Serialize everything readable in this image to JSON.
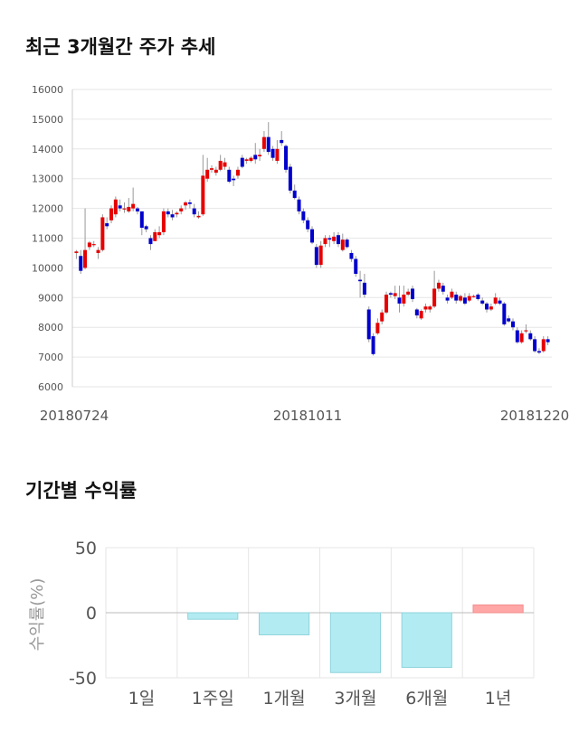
{
  "titles": {
    "stock": "최근 3개월간 주가 추세",
    "returns": "기간별 수익률"
  },
  "colors": {
    "up": "#e60000",
    "down": "#0000cc",
    "wick": "#999999",
    "grid": "#e6e6e6",
    "bar_negative": "#b3ebf2",
    "bar_negative_stroke": "#8fd3dc",
    "bar_positive": "#ffa6a6",
    "bar_positive_stroke": "#f28d8d"
  },
  "chart_data": [
    {
      "type": "candlestick",
      "title": "최근 3개월간 주가 추세",
      "ylim": [
        6000,
        16000
      ],
      "yticks": [
        "16000",
        "15000",
        "14000",
        "13000",
        "12000",
        "11000",
        "10000",
        "9000",
        "8000",
        "7000",
        "6000"
      ],
      "x_labels": [
        "20180724",
        "20181011",
        "20181220"
      ],
      "grid": true,
      "candles": [
        [
          10500,
          10550,
          10300,
          10600
        ],
        [
          10400,
          9900,
          9800,
          10600
        ],
        [
          10000,
          10600,
          9950,
          12000
        ],
        [
          10700,
          10850,
          10600,
          10900
        ],
        [
          10800,
          10800,
          10700,
          10900
        ],
        [
          10500,
          10600,
          10300,
          10700
        ],
        [
          10600,
          11700,
          10550,
          11800
        ],
        [
          11500,
          11400,
          11300,
          11700
        ],
        [
          11600,
          12000,
          11500,
          12100
        ],
        [
          11800,
          12300,
          11700,
          12400
        ],
        [
          12100,
          12000,
          11900,
          12300
        ],
        [
          12000,
          12000,
          11850,
          12200
        ],
        [
          11900,
          12050,
          11850,
          12350
        ],
        [
          12000,
          12150,
          11900,
          12700
        ],
        [
          12000,
          11900,
          11800,
          12050
        ],
        [
          11900,
          11350,
          11100,
          11900
        ],
        [
          11400,
          11300,
          11200,
          11450
        ],
        [
          11000,
          10800,
          10600,
          11100
        ],
        [
          10900,
          11200,
          10900,
          11300
        ],
        [
          11100,
          11200,
          11000,
          11400
        ],
        [
          11200,
          11900,
          11100,
          12000
        ],
        [
          11900,
          11800,
          11700,
          12000
        ],
        [
          11800,
          11700,
          11600,
          11950
        ],
        [
          11800,
          11850,
          11700,
          11900
        ],
        [
          11900,
          12000,
          11800,
          12100
        ],
        [
          12100,
          12200,
          11950,
          12250
        ],
        [
          12200,
          12150,
          12000,
          12300
        ],
        [
          12000,
          11800,
          11700,
          12150
        ],
        [
          11700,
          11750,
          11650,
          11900
        ],
        [
          11800,
          13100,
          11750,
          13800
        ],
        [
          13000,
          13300,
          12900,
          13700
        ],
        [
          13300,
          13350,
          13200,
          13450
        ],
        [
          13200,
          13300,
          13100,
          13400
        ],
        [
          13300,
          13600,
          13250,
          13800
        ],
        [
          13400,
          13550,
          13300,
          13700
        ],
        [
          13300,
          12900,
          12850,
          13400
        ],
        [
          13000,
          12950,
          12750,
          13100
        ],
        [
          13100,
          13300,
          13000,
          13400
        ],
        [
          13700,
          13400,
          13350,
          13800
        ],
        [
          13600,
          13650,
          13500,
          13700
        ],
        [
          13600,
          13700,
          13550,
          13750
        ],
        [
          13800,
          13650,
          13500,
          14200
        ],
        [
          13750,
          13800,
          13600,
          14000
        ],
        [
          14000,
          14400,
          13900,
          14600
        ],
        [
          14400,
          13900,
          13800,
          14900
        ],
        [
          14000,
          13700,
          13600,
          14100
        ],
        [
          13600,
          14000,
          13500,
          14300
        ],
        [
          14300,
          14200,
          14100,
          14600
        ],
        [
          14100,
          13300,
          13200,
          14150
        ],
        [
          13400,
          12600,
          12500,
          13500
        ],
        [
          12600,
          12350,
          12300,
          12800
        ],
        [
          12300,
          11900,
          11800,
          12400
        ],
        [
          11900,
          11600,
          11500,
          12000
        ],
        [
          11600,
          11300,
          11200,
          11700
        ],
        [
          11300,
          10850,
          10800,
          11400
        ],
        [
          10700,
          10100,
          10000,
          10800
        ],
        [
          10100,
          10750,
          10000,
          10900
        ],
        [
          10800,
          11000,
          10700,
          11100
        ],
        [
          11000,
          10950,
          10700,
          11100
        ],
        [
          10900,
          11050,
          10800,
          11200
        ],
        [
          11100,
          10800,
          10700,
          11200
        ],
        [
          10600,
          10950,
          10550,
          11150
        ],
        [
          10950,
          10700,
          10650,
          11000
        ],
        [
          10500,
          10300,
          10200,
          10600
        ],
        [
          10300,
          9800,
          9700,
          10400
        ],
        [
          9600,
          9550,
          9000,
          9900
        ],
        [
          9500,
          9100,
          9000,
          9800
        ],
        [
          8600,
          7600,
          7500,
          8700
        ],
        [
          7700,
          7100,
          7050,
          7800
        ],
        [
          7800,
          8150,
          7750,
          8300
        ],
        [
          8200,
          8500,
          8100,
          8600
        ],
        [
          8500,
          9100,
          8450,
          9200
        ],
        [
          9150,
          9100,
          9000,
          9200
        ],
        [
          9050,
          9150,
          8950,
          9400
        ],
        [
          9000,
          8800,
          8500,
          9400
        ],
        [
          8800,
          9100,
          8700,
          9400
        ],
        [
          9100,
          9200,
          9050,
          9300
        ],
        [
          9300,
          8950,
          8850,
          9400
        ],
        [
          8600,
          8400,
          8300,
          8650
        ],
        [
          8300,
          8550,
          8250,
          8600
        ],
        [
          8600,
          8700,
          8500,
          8800
        ],
        [
          8600,
          8700,
          8500,
          8750
        ],
        [
          8700,
          9300,
          8650,
          9900
        ],
        [
          9300,
          9500,
          9200,
          9600
        ],
        [
          9400,
          9200,
          9100,
          9500
        ],
        [
          9000,
          8900,
          8800,
          9100
        ],
        [
          9000,
          9200,
          8950,
          9300
        ],
        [
          9100,
          8900,
          8800,
          9200
        ],
        [
          8900,
          9050,
          8850,
          9100
        ],
        [
          9000,
          8800,
          8750,
          9150
        ],
        [
          8900,
          9050,
          8850,
          9150
        ],
        [
          9050,
          9050,
          9000,
          9100
        ],
        [
          9100,
          8950,
          8900,
          9150
        ],
        [
          8900,
          8800,
          8750,
          9000
        ],
        [
          8800,
          8600,
          8500,
          8850
        ],
        [
          8600,
          8700,
          8550,
          8800
        ],
        [
          8800,
          9000,
          8750,
          9150
        ],
        [
          8900,
          8800,
          8750,
          9000
        ],
        [
          8800,
          8100,
          8050,
          8850
        ],
        [
          8300,
          8200,
          8150,
          8400
        ],
        [
          8200,
          8000,
          7900,
          8300
        ],
        [
          7900,
          7500,
          7450,
          8000
        ],
        [
          7500,
          7800,
          7450,
          7900
        ],
        [
          7900,
          7900,
          7800,
          8100
        ],
        [
          7800,
          7600,
          7550,
          7900
        ],
        [
          7600,
          7200,
          7150,
          7700
        ],
        [
          7200,
          7150,
          7100,
          7300
        ],
        [
          7200,
          7600,
          7150,
          7700
        ],
        [
          7600,
          7500,
          7400,
          7700
        ]
      ]
    },
    {
      "type": "bar",
      "title": "기간별 수익률",
      "ylabel": "수익률(%)",
      "ylim": [
        -50,
        50
      ],
      "yticks": [
        "50",
        "0",
        "-50"
      ],
      "categories": [
        "1일",
        "1주일",
        "1개월",
        "3개월",
        "6개월",
        "1년"
      ],
      "values": [
        0,
        -5,
        -17,
        -46,
        -42,
        6
      ]
    }
  ]
}
